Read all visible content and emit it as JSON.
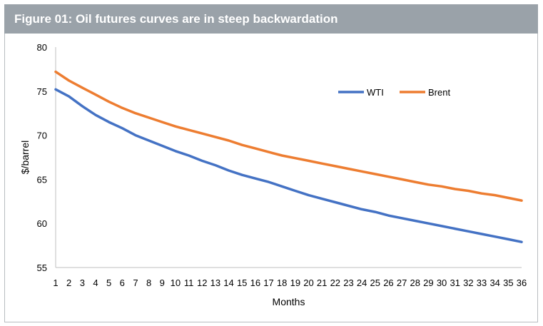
{
  "header": {
    "title": "Figure 01: Oil futures curves are in steep backwardation"
  },
  "chart_data": {
    "type": "line",
    "title": "Figure 01: Oil futures curves are in steep backwardation",
    "xlabel": "Months",
    "ylabel": "$/barrel",
    "ylim": [
      55,
      80
    ],
    "yticks": [
      55,
      60,
      65,
      70,
      75,
      80
    ],
    "x": [
      1,
      2,
      3,
      4,
      5,
      6,
      7,
      8,
      9,
      10,
      11,
      12,
      13,
      14,
      15,
      16,
      17,
      18,
      19,
      20,
      21,
      22,
      23,
      24,
      25,
      26,
      27,
      28,
      29,
      30,
      31,
      32,
      33,
      34,
      35,
      36
    ],
    "grid": false,
    "legend_position": "top-right",
    "series": [
      {
        "name": "WTI",
        "color": "#4472c4",
        "values": [
          75.2,
          74.4,
          73.3,
          72.3,
          71.5,
          70.8,
          70.0,
          69.4,
          68.8,
          68.2,
          67.7,
          67.1,
          66.6,
          66.0,
          65.5,
          65.1,
          64.7,
          64.2,
          63.7,
          63.2,
          62.8,
          62.4,
          62.0,
          61.6,
          61.3,
          60.9,
          60.6,
          60.3,
          60.0,
          59.7,
          59.4,
          59.1,
          58.8,
          58.5,
          58.2,
          57.9
        ]
      },
      {
        "name": "Brent",
        "color": "#ed7d31",
        "values": [
          77.2,
          76.2,
          75.4,
          74.6,
          73.8,
          73.1,
          72.5,
          72.0,
          71.5,
          71.0,
          70.6,
          70.2,
          69.8,
          69.4,
          68.9,
          68.5,
          68.1,
          67.7,
          67.4,
          67.1,
          66.8,
          66.5,
          66.2,
          65.9,
          65.6,
          65.3,
          65.0,
          64.7,
          64.4,
          64.2,
          63.9,
          63.7,
          63.4,
          63.2,
          62.9,
          62.6
        ]
      }
    ]
  }
}
